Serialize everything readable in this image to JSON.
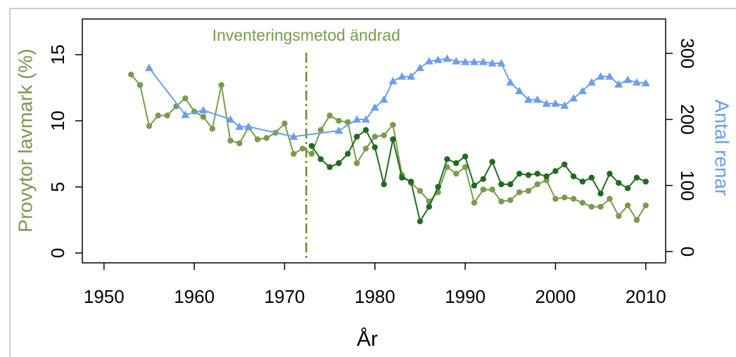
{
  "chart_data": {
    "type": "line",
    "annotation": "Inventeringsmetod ändrad",
    "annotation_x": 1972.4,
    "xlabel": "År",
    "ylabel": "Provytor lavmark (%)",
    "y2label": "Antal renar",
    "xlim": [
      1947.6,
      2012.2
    ],
    "xticks": [
      1950,
      1960,
      1970,
      1980,
      1990,
      2000,
      2010
    ],
    "ylim": [
      -0.74,
      17.7
    ],
    "yticks": [
      0,
      5,
      10,
      15
    ],
    "y2lim": [
      -17,
      352
    ],
    "y2ticks": [
      0,
      100,
      200,
      300
    ],
    "series": [
      {
        "color": "#7a9a4e",
        "marker": "circle",
        "x": [
          1953,
          1954,
          1955,
          1956,
          1957,
          1958,
          1959,
          1960,
          1961,
          1962,
          1963,
          1964,
          1965,
          1966,
          1967,
          1968,
          1969,
          1970,
          1971,
          1972,
          1973,
          1974,
          1975,
          1976,
          1977,
          1978,
          1979,
          1980,
          1981,
          1982,
          1983,
          1984,
          1985,
          1986,
          1987,
          1988,
          1989,
          1990,
          1991,
          1992,
          1993,
          1994,
          1995,
          1996,
          1997,
          1998,
          1999,
          2000,
          2001,
          2002,
          2003,
          2004,
          2005,
          2006,
          2007,
          2008,
          2009,
          2010
        ],
        "values": [
          13.5,
          12.7,
          9.6,
          10.4,
          10.4,
          11.1,
          11.7,
          10.7,
          10.3,
          9.4,
          12.7,
          8.5,
          8.3,
          9.5,
          8.6,
          8.7,
          9.1,
          9.8,
          7.5,
          7.9,
          7.5,
          9.3,
          10.4,
          10.0,
          9.9,
          6.8,
          7.9,
          8.8,
          8.9,
          9.7,
          5.9,
          5.3,
          4.7,
          3.9,
          4.6,
          6.5,
          6.0,
          6.5,
          3.8,
          4.8,
          4.8,
          3.9,
          4.0,
          4.6,
          4.7,
          5.2,
          5.5,
          4.1,
          4.2,
          4.1,
          3.8,
          3.5,
          3.5,
          4.1,
          2.8,
          3.6,
          2.5,
          3.6
        ]
      },
      {
        "color": "#1f6b1f",
        "marker": "circle",
        "x": [
          1973,
          1974,
          1975,
          1976,
          1977,
          1978,
          1979,
          1980,
          1981,
          1982,
          1983,
          1984,
          1985,
          1986,
          1987,
          1988,
          1989,
          1990,
          1991,
          1992,
          1993,
          1994,
          1995,
          1996,
          1997,
          1998,
          1999,
          2000,
          2001,
          2002,
          2003,
          2004,
          2005,
          2006,
          2007,
          2008,
          2009,
          2010
        ],
        "values": [
          8.1,
          7.1,
          6.5,
          6.8,
          7.5,
          8.8,
          9.3,
          8.0,
          5.2,
          8.6,
          5.7,
          5.4,
          2.4,
          3.5,
          5.0,
          7.1,
          6.8,
          7.3,
          5.1,
          5.6,
          6.9,
          5.2,
          5.2,
          6.0,
          5.9,
          6.0,
          5.8,
          6.2,
          6.7,
          5.8,
          5.4,
          5.7,
          4.5,
          6.0,
          5.3,
          4.9,
          5.7,
          5.4
        ]
      },
      {
        "color": "#6d9eeb",
        "marker": "triangle",
        "axis": "y2",
        "x": [
          1955,
          1959,
          1961,
          1964,
          1965,
          1966,
          1971,
          1976,
          1978,
          1979,
          1980,
          1981,
          1982,
          1983,
          1984,
          1985,
          1986,
          1987,
          1988,
          1989,
          1990,
          1991,
          1992,
          1993,
          1994,
          1995,
          1996,
          1997,
          1998,
          1999,
          2000,
          2001,
          2002,
          2003,
          2004,
          2005,
          2006,
          2007,
          2008,
          2009,
          2010
        ],
        "values": [
          278,
          207,
          214,
          200,
          189,
          189,
          174,
          183,
          200,
          200,
          218,
          230,
          258,
          265,
          265,
          278,
          288,
          290,
          292,
          288,
          287,
          287,
          287,
          285,
          285,
          256,
          243,
          230,
          230,
          224,
          224,
          221,
          232,
          243,
          256,
          265,
          265,
          253,
          260,
          256,
          255
        ]
      }
    ]
  }
}
